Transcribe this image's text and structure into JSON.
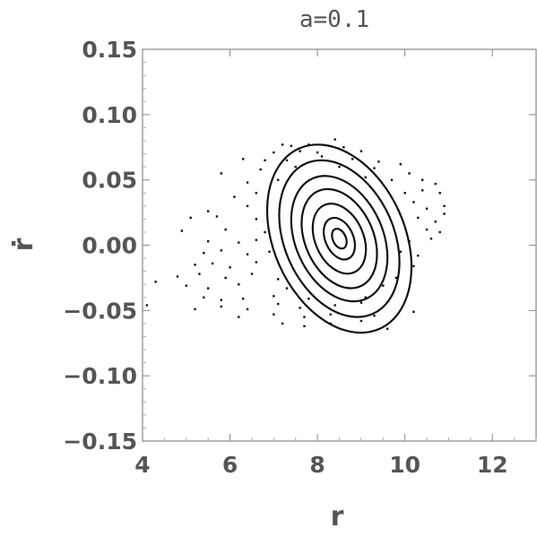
{
  "chart_data": {
    "type": "scatter",
    "title": "a=0.1",
    "xlabel": "r",
    "ylabel": "ṙ",
    "xlim": [
      4,
      13
    ],
    "ylim": [
      -0.15,
      0.15
    ],
    "x_ticks": [
      4,
      6,
      8,
      10,
      12
    ],
    "x_tick_labels": [
      "4",
      "6",
      "8",
      "10",
      "12"
    ],
    "y_ticks": [
      0.15,
      0.1,
      0.05,
      0.0,
      -0.05,
      -0.1,
      -0.15
    ],
    "y_tick_labels": [
      "0.15",
      "0.10",
      "0.05",
      "0.00",
      "−0.05",
      "−0.10",
      "−0.15"
    ],
    "grid": false,
    "orbits": [
      {
        "center": [
          8.5,
          0.005
        ],
        "semi_major": 1.5,
        "semi_minor": 0.018,
        "tilt": -0.42
      },
      {
        "center": [
          8.5,
          0.005
        ],
        "semi_major": 1.25,
        "semi_minor": 0.015,
        "tilt": -0.42
      },
      {
        "center": [
          8.5,
          0.005
        ],
        "semi_major": 1.0,
        "semi_minor": 0.012,
        "tilt": -0.42
      },
      {
        "center": [
          8.5,
          0.005
        ],
        "semi_major": 0.78,
        "semi_minor": 0.0095,
        "tilt": -0.42
      },
      {
        "center": [
          8.5,
          0.005
        ],
        "semi_major": 0.55,
        "semi_minor": 0.0067,
        "tilt": -0.42
      },
      {
        "center": [
          8.5,
          0.005
        ],
        "semi_major": 0.32,
        "semi_minor": 0.004,
        "tilt": -0.42
      },
      {
        "center": [
          8.5,
          0.005
        ],
        "semi_major": 0.15,
        "semi_minor": 0.0019,
        "tilt": -0.42
      }
    ],
    "scatter_points": [
      [
        7.2,
        0.077
      ],
      [
        7.4,
        0.076
      ],
      [
        7.8,
        0.077
      ],
      [
        8.4,
        0.081
      ],
      [
        7.0,
        0.071
      ],
      [
        7.6,
        0.072
      ],
      [
        8.0,
        0.071
      ],
      [
        8.6,
        0.075
      ],
      [
        9.0,
        0.072
      ],
      [
        6.3,
        0.066
      ],
      [
        6.8,
        0.065
      ],
      [
        7.3,
        0.065
      ],
      [
        8.1,
        0.068
      ],
      [
        8.8,
        0.066
      ],
      [
        9.4,
        0.064
      ],
      [
        9.9,
        0.062
      ],
      [
        5.8,
        0.055
      ],
      [
        6.7,
        0.058
      ],
      [
        7.5,
        0.06
      ],
      [
        8.5,
        0.06
      ],
      [
        9.3,
        0.059
      ],
      [
        10.1,
        0.055
      ],
      [
        6.4,
        0.048
      ],
      [
        7.1,
        0.05
      ],
      [
        9.1,
        0.052
      ],
      [
        9.7,
        0.05
      ],
      [
        10.4,
        0.05
      ],
      [
        10.7,
        0.047
      ],
      [
        6.1,
        0.037
      ],
      [
        6.6,
        0.04
      ],
      [
        10.0,
        0.04
      ],
      [
        10.4,
        0.042
      ],
      [
        10.8,
        0.04
      ],
      [
        5.5,
        0.026
      ],
      [
        6.4,
        0.03
      ],
      [
        10.2,
        0.033
      ],
      [
        10.5,
        0.028
      ],
      [
        10.9,
        0.03
      ],
      [
        5.1,
        0.021
      ],
      [
        5.7,
        0.022
      ],
      [
        6.6,
        0.02
      ],
      [
        10.3,
        0.021
      ],
      [
        10.7,
        0.018
      ],
      [
        10.9,
        0.024
      ],
      [
        4.9,
        0.011
      ],
      [
        5.9,
        0.012
      ],
      [
        6.8,
        0.01
      ],
      [
        10.5,
        0.012
      ],
      [
        10.8,
        0.01
      ],
      [
        5.5,
        0.003
      ],
      [
        6.2,
        0.002
      ],
      [
        6.6,
        0.004
      ],
      [
        10.1,
        0.003
      ],
      [
        10.6,
        0.005
      ],
      [
        5.4,
        -0.006
      ],
      [
        5.8,
        -0.004
      ],
      [
        6.4,
        -0.007
      ],
      [
        6.9,
        -0.005
      ],
      [
        9.9,
        -0.005
      ],
      [
        10.3,
        -0.008
      ],
      [
        5.2,
        -0.015
      ],
      [
        5.6,
        -0.014
      ],
      [
        6.0,
        -0.017
      ],
      [
        6.6,
        -0.013
      ],
      [
        10.2,
        -0.016
      ],
      [
        4.8,
        -0.024
      ],
      [
        5.3,
        -0.022
      ],
      [
        5.9,
        -0.025
      ],
      [
        6.5,
        -0.022
      ],
      [
        7.1,
        -0.026
      ],
      [
        9.8,
        -0.025
      ],
      [
        4.3,
        -0.028
      ],
      [
        5.0,
        -0.031
      ],
      [
        5.5,
        -0.033
      ],
      [
        6.2,
        -0.03
      ],
      [
        7.3,
        -0.033
      ],
      [
        9.5,
        -0.031
      ],
      [
        5.4,
        -0.04
      ],
      [
        5.8,
        -0.042
      ],
      [
        6.3,
        -0.041
      ],
      [
        7.0,
        -0.039
      ],
      [
        7.8,
        -0.041
      ],
      [
        9.1,
        -0.04
      ],
      [
        5.2,
        -0.049
      ],
      [
        5.8,
        -0.047
      ],
      [
        6.4,
        -0.049
      ],
      [
        7.1,
        -0.045
      ],
      [
        7.6,
        -0.048
      ],
      [
        8.4,
        -0.046
      ],
      [
        9.0,
        -0.044
      ],
      [
        4.1,
        -0.046
      ],
      [
        6.2,
        -0.055
      ],
      [
        7.0,
        -0.053
      ],
      [
        7.7,
        -0.055
      ],
      [
        8.3,
        -0.053
      ],
      [
        9.3,
        -0.054
      ],
      [
        10.2,
        -0.051
      ],
      [
        7.2,
        -0.06
      ],
      [
        7.7,
        -0.062
      ],
      [
        8.3,
        -0.06
      ],
      [
        9.0,
        -0.058
      ],
      [
        9.6,
        -0.064
      ]
    ]
  }
}
